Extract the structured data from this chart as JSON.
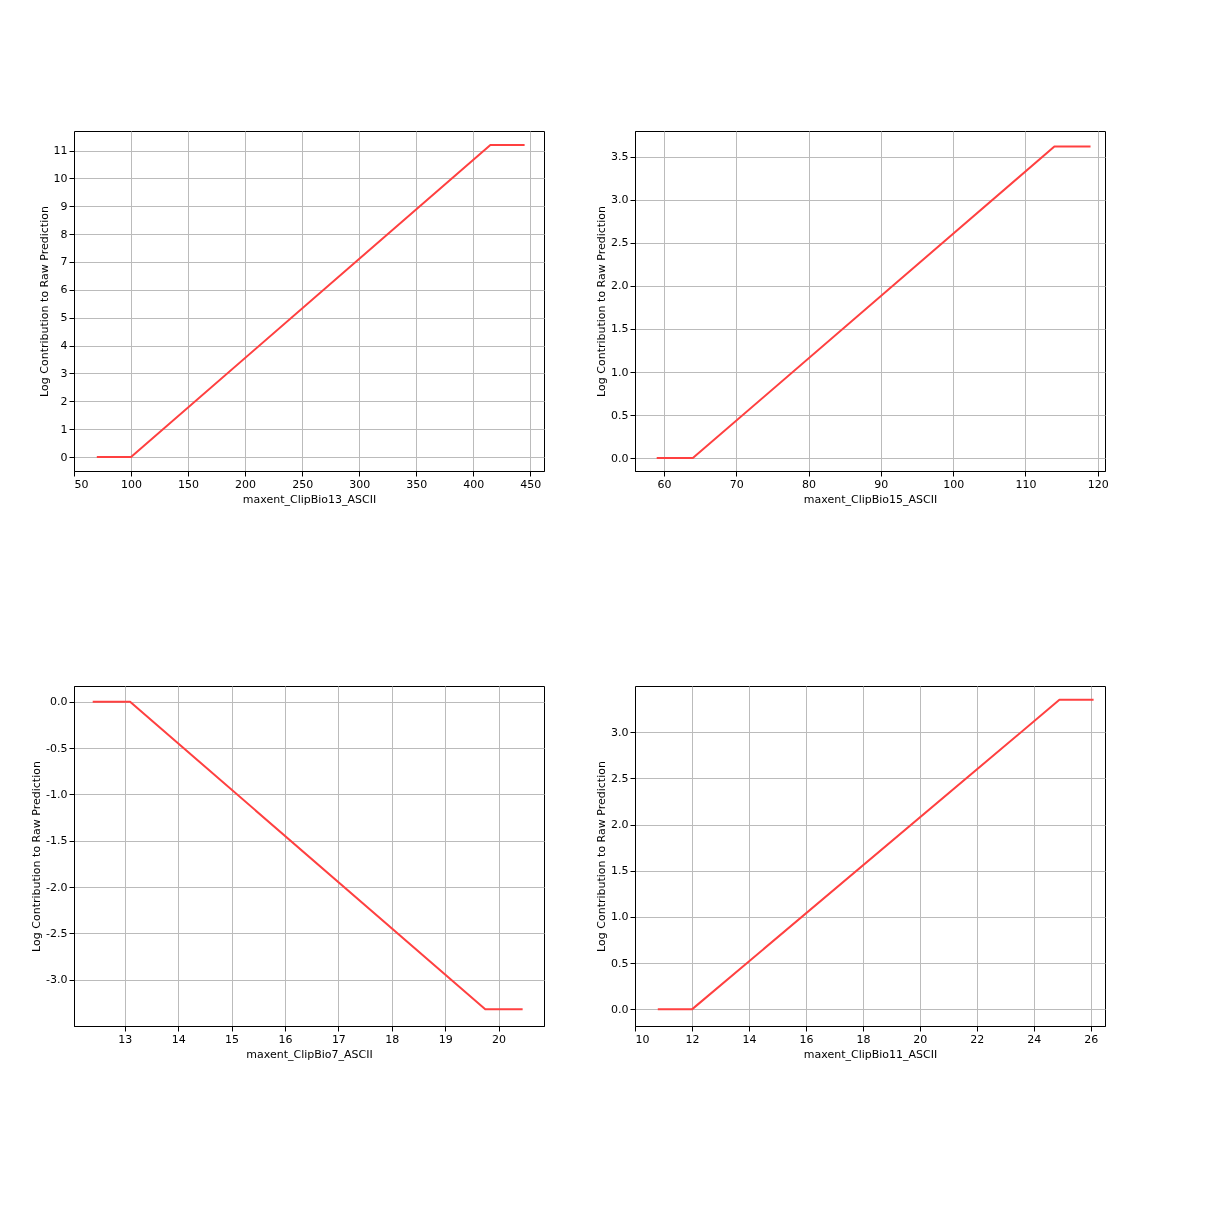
{
  "chart_data": [
    {
      "type": "line",
      "xlabel": "maxent_ClipBio13_ASCII",
      "ylabel": "Log Contribution to Raw Prediction",
      "x": [
        70,
        100,
        415,
        445
      ],
      "series": [
        {
          "color": "#ff4040",
          "values": [
            0,
            0,
            11.2,
            11.2
          ]
        }
      ],
      "xlim": [
        50,
        462
      ],
      "xticks": [
        50,
        100,
        150,
        200,
        250,
        300,
        350,
        400,
        450
      ],
      "ylim": [
        -0.5,
        11.7
      ],
      "yticks": [
        0,
        1,
        2,
        3,
        4,
        5,
        6,
        7,
        8,
        9,
        10,
        11
      ],
      "grid": true,
      "line_style": "solid",
      "marker": "none"
    },
    {
      "type": "line",
      "xlabel": "maxent_ClipBio15_ASCII",
      "ylabel": "Log Contribution to Raw Prediction",
      "x": [
        59,
        64,
        114,
        119
      ],
      "series": [
        {
          "color": "#ff4040",
          "values": [
            0,
            0,
            3.62,
            3.62
          ]
        }
      ],
      "xlim": [
        56,
        121
      ],
      "xticks": [
        60,
        70,
        80,
        90,
        100,
        110,
        120
      ],
      "ylim": [
        -0.15,
        3.8
      ],
      "yticks": [
        {
          "value": 0,
          "label": "0.0"
        },
        {
          "value": 0.5,
          "label": "0.5"
        },
        {
          "value": 1,
          "label": "1.0"
        },
        {
          "value": 1.5,
          "label": "1.5"
        },
        {
          "value": 2,
          "label": "2.0"
        },
        {
          "value": 2.5,
          "label": "2.5"
        },
        {
          "value": 3,
          "label": "3.0"
        },
        {
          "value": 3.5,
          "label": "3.5"
        }
      ],
      "grid": true,
      "line_style": "solid",
      "marker": "none"
    },
    {
      "type": "line",
      "xlabel": "maxent_ClipBio7_ASCII",
      "ylabel": "Log Contribution to Raw Prediction",
      "x": [
        12.4,
        13.1,
        19.75,
        20.45
      ],
      "series": [
        {
          "color": "#ff4040",
          "values": [
            0,
            0,
            -3.32,
            -3.32
          ]
        }
      ],
      "xlim": [
        12.05,
        20.85
      ],
      "xticks": [
        13,
        14,
        15,
        16,
        17,
        18,
        19,
        20
      ],
      "ylim": [
        -3.5,
        0.17
      ],
      "yticks": [
        {
          "value": 0,
          "label": "0.0"
        },
        {
          "value": -0.5,
          "label": "-0.5"
        },
        {
          "value": -1,
          "label": "-1.0"
        },
        {
          "value": -1.5,
          "label": "-1.5"
        },
        {
          "value": -2,
          "label": "-2.0"
        },
        {
          "value": -2.5,
          "label": "-2.5"
        },
        {
          "value": -3,
          "label": "-3.0"
        }
      ],
      "grid": true,
      "line_style": "solid",
      "marker": "none"
    },
    {
      "type": "line",
      "xlabel": "maxent_ClipBio11_ASCII",
      "ylabel": "Log Contribution to Raw Prediction",
      "x": [
        10.8,
        12,
        24.9,
        26.1
      ],
      "series": [
        {
          "color": "#ff4040",
          "values": [
            0,
            0,
            3.35,
            3.35
          ]
        }
      ],
      "xlim": [
        10,
        26.5
      ],
      "xticks": [
        10,
        12,
        14,
        16,
        18,
        20,
        22,
        24,
        26
      ],
      "ylim": [
        -0.18,
        3.5
      ],
      "yticks": [
        {
          "value": 0,
          "label": "0.0"
        },
        {
          "value": 0.5,
          "label": "0.5"
        },
        {
          "value": 1,
          "label": "1.0"
        },
        {
          "value": 1.5,
          "label": "1.5"
        },
        {
          "value": 2,
          "label": "2.0"
        },
        {
          "value": 2.5,
          "label": "2.5"
        },
        {
          "value": 3,
          "label": "3.0"
        }
      ],
      "grid": true,
      "line_style": "solid",
      "marker": "none"
    }
  ]
}
